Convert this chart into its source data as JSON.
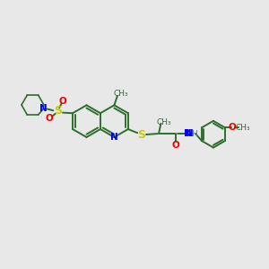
{
  "bg_color": "#e8e8e8",
  "bond_color": "#2d6e2d",
  "N_color": "#0000ee",
  "O_color": "#ee0000",
  "S_color": "#cccc00",
  "NH_color": "#4a8a8a",
  "figsize": [
    3.0,
    3.0
  ],
  "dpi": 100,
  "xlim": [
    0,
    10
  ],
  "ylim": [
    0,
    10
  ]
}
